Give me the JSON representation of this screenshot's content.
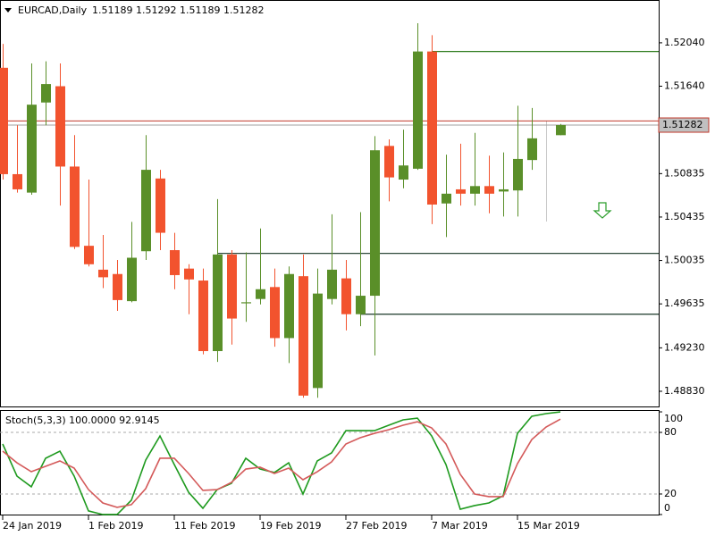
{
  "chart_data": [
    {
      "type": "candlestick",
      "title": "EURCAD,Daily",
      "x": [
        "24 Jan 2019",
        null,
        null,
        null,
        null,
        null,
        "1 Feb 2019",
        null,
        null,
        null,
        null,
        null,
        "11 Feb 2019",
        null,
        null,
        null,
        null,
        null,
        "19 Feb 2019",
        null,
        null,
        null,
        null,
        null,
        "27 Feb 2019",
        null,
        null,
        null,
        null,
        null,
        "7 Mar 2019",
        null,
        null,
        null,
        null,
        null,
        "15 Mar 2019",
        null,
        null,
        null
      ],
      "open": [
        1.5181,
        1.5083,
        1.5066,
        1.5149,
        1.5164,
        1.509,
        1.5017,
        1.4995,
        1.4991,
        1.4966,
        1.5012,
        1.5079,
        1.5013,
        1.4996,
        1.4985,
        1.492,
        1.5009,
        1.4964,
        1.4968,
        1.4979,
        1.4932,
        1.4989,
        1.4886,
        1.4968,
        1.4987,
        1.4954,
        1.4971,
        1.5109,
        1.5078,
        1.5088,
        1.5196,
        1.5056,
        1.5069,
        1.5065,
        1.5072,
        1.5067,
        1.5068,
        1.5096,
        null,
        1.51189
      ],
      "high": [
        1.5203,
        1.5128,
        1.5185,
        1.5187,
        1.5185,
        1.5119,
        1.5078,
        1.5027,
        1.5004,
        1.5039,
        1.5119,
        1.5087,
        1.5029,
        1.5,
        1.4996,
        1.506,
        1.5013,
        1.5011,
        1.5033,
        1.4996,
        1.4998,
        1.5009,
        1.4996,
        1.5046,
        1.5004,
        1.5048,
        1.5118,
        1.5115,
        1.5124,
        1.5222,
        1.5211,
        1.5101,
        1.5111,
        1.5121,
        1.51,
        1.5103,
        1.5146,
        1.5144,
        null,
        1.51292
      ],
      "low": [
        1.5078,
        1.5066,
        1.5064,
        1.5128,
        1.5054,
        1.5014,
        1.4998,
        1.4978,
        1.4957,
        1.4965,
        1.5004,
        1.5013,
        1.4977,
        1.4954,
        1.4917,
        1.491,
        1.4926,
        1.4947,
        1.4963,
        1.4924,
        1.4909,
        1.4877,
        1.4877,
        1.4963,
        1.4939,
        1.4943,
        1.4916,
        1.5058,
        1.507,
        1.5087,
        1.5037,
        1.5025,
        1.5054,
        1.5054,
        1.5047,
        1.5044,
        1.5044,
        1.5087,
        null,
        1.51189
      ],
      "close": [
        1.5083,
        1.5069,
        1.5147,
        1.5166,
        1.509,
        1.5016,
        1.5,
        1.4988,
        1.4967,
        1.5006,
        1.5087,
        1.5029,
        1.499,
        1.4986,
        1.492,
        1.5009,
        1.495,
        1.4965,
        1.4977,
        1.4932,
        1.4991,
        1.4879,
        1.4973,
        1.4995,
        1.4954,
        1.4971,
        1.5105,
        1.508,
        1.5091,
        1.5196,
        1.5055,
        1.5065,
        1.5065,
        1.5072,
        1.5065,
        1.5069,
        1.5097,
        1.5116,
        null,
        1.51282
      ],
      "up_color": "#5a8f29",
      "down_color": "#f2532e",
      "ylim": [
        1.4869,
        1.52426
      ],
      "yticks": [
        {
          "value": 1.5204,
          "label": "1.52040"
        },
        {
          "value": 1.5164,
          "label": "1.51640"
        },
        {
          "value": 1.50835,
          "label": "1.50835"
        },
        {
          "value": 1.50435,
          "label": "1.50435"
        },
        {
          "value": 1.50035,
          "label": "1.50035"
        },
        {
          "value": 1.49635,
          "label": "1.49635"
        },
        {
          "value": 1.4923,
          "label": "1.49230"
        },
        {
          "value": 1.4883,
          "label": "1.48830"
        }
      ],
      "levels": [
        {
          "value": 1.5196,
          "color": "#2f7d1e",
          "start": 30
        },
        {
          "value": 1.501,
          "color": "#2f4a3c",
          "start": 15
        },
        {
          "value": 1.4954,
          "color": "#2f4a3c",
          "start": 25
        }
      ],
      "ask": {
        "value": 1.5132,
        "color": "#c0392b"
      },
      "bid_color": "#a0a0a0"
    },
    {
      "type": "line",
      "title": "Stoch(5,3,3) 100.0000 92.9145",
      "series": [
        {
          "color": "#1e9a1e",
          "values": [
            68.7,
            37.4,
            27,
            54.8,
            61.7,
            37.4,
            3.5,
            0,
            0,
            13.9,
            53,
            76.5,
            48.7,
            21.7,
            6.1,
            24.3,
            30.4,
            54.8,
            44.3,
            40.9,
            50.4,
            20,
            52.2,
            60,
            81.7,
            81.7,
            81.7,
            87,
            92.2,
            93.9,
            76.5,
            48.7,
            5.2,
            8.7,
            11.3,
            18.3,
            79.1,
            95.7,
            98.3,
            100
          ]
        },
        {
          "color": "#d45a5a",
          "values": [
            61.7,
            50.4,
            41.7,
            47,
            52.2,
            45.2,
            24.3,
            11.3,
            7,
            9.6,
            25.2,
            54.8,
            54.8,
            40,
            23.5,
            24.3,
            31.3,
            44.3,
            46.1,
            40,
            45.2,
            33.9,
            41.7,
            51.3,
            68.7,
            74.8,
            79.1,
            82.6,
            87,
            90.4,
            84.3,
            68.7,
            39.1,
            20,
            17.4,
            17.4,
            49.6,
            73,
            85.2,
            92.9145
          ]
        }
      ],
      "ylim": [
        -0.9,
        100.9
      ],
      "yticks": [
        0,
        20,
        80,
        100
      ],
      "levels": [
        20,
        80
      ]
    }
  ]
}
